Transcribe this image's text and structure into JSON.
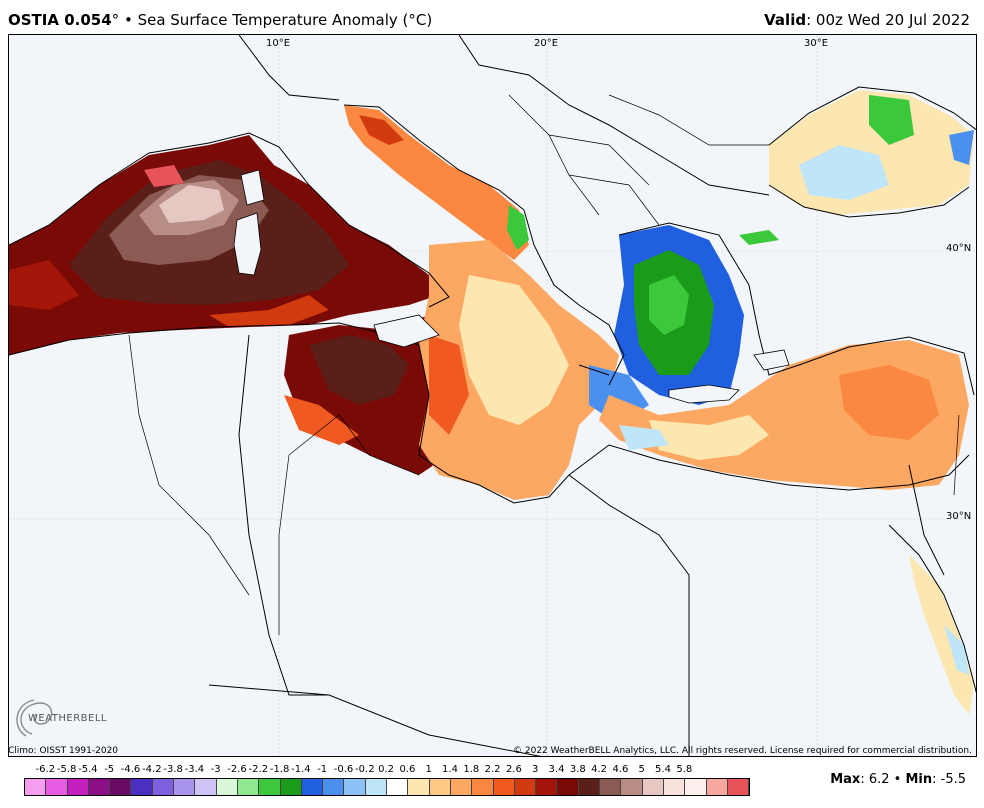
{
  "header": {
    "product": "OSTIA 0.054",
    "degree_sym": "°",
    "bullet": "•",
    "field": "Sea Surface Temperature Anomaly (",
    "unit": "°C)",
    "valid_label": "Valid",
    "valid_value": ": 00z Wed 20 Jul 2022"
  },
  "map": {
    "lon_labels": [
      "10°E",
      "20°E",
      "30°E"
    ],
    "lat_labels": [
      "40°N",
      "30°N"
    ]
  },
  "footer": {
    "climo": "Climo: OISST 1991-2020",
    "copyright": "© 2022 WeatherBELL Analytics, LLC. All rights reserved. License required for commercial distribution.",
    "logo_text": "WEATHERBELL",
    "max_label": "Max",
    "max_value": ": 6.2",
    "sep": "•",
    "min_label": "Min",
    "min_value": ": -5.5"
  },
  "legend": {
    "ticks": [
      "-6.2",
      "-5.8",
      "-5.4",
      "-5",
      "-4.6",
      "-4.2",
      "-3.8",
      "-3.4",
      "-3",
      "-2.6",
      "-2.2",
      "-1.8",
      "-1.4",
      "-1",
      "-0.6",
      "-0.2",
      "0.2",
      "0.6",
      "1",
      "1.4",
      "1.8",
      "2.2",
      "2.6",
      "3",
      "3.4",
      "3.8",
      "4.2",
      "4.6",
      "5",
      "5.4",
      "5.8"
    ],
    "colors": [
      "#f59ef0",
      "#e85ce3",
      "#c41fbf",
      "#8c0f86",
      "#6b0a66",
      "#4b2fbf",
      "#7d5fe0",
      "#a994ee",
      "#cfc3f6",
      "#d9f7d9",
      "#8fe88f",
      "#3bc83b",
      "#1a9b1a",
      "#1f5fe0",
      "#4b8fef",
      "#8cc2f6",
      "#bfe6f8",
      "#ffffff",
      "#fde7b0",
      "#fdc984",
      "#fca862",
      "#fb8840",
      "#f05a20",
      "#d23a0f",
      "#a5160a",
      "#7a0a05",
      "#5a1f18",
      "#8b5a52",
      "#b88d85",
      "#e6c8c2",
      "#f7e2de",
      "#fcefed",
      "#f7a6a0",
      "#e8535a"
    ]
  }
}
